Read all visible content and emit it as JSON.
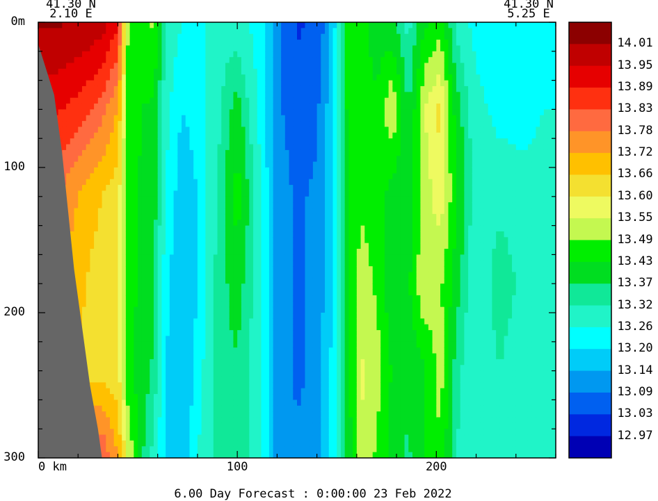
{
  "header": {
    "left_lat": "41.30 N",
    "left_lon": "2.10 E",
    "right_lat": "41.30 N",
    "right_lon": "5.25 E"
  },
  "footer": {
    "caption": "6.00 Day Forecast :  0:00:00  23 Feb 2022"
  },
  "chart_data": {
    "type": "heatmap",
    "title": "",
    "xlabel": "",
    "ylabel": "",
    "x_unit_label": "km",
    "y_unit_label": "m",
    "xlim": [
      0,
      260
    ],
    "ylim": [
      0,
      300
    ],
    "y_inverted": true,
    "x_ticks": [
      {
        "value": 0,
        "label": "0"
      },
      {
        "value": 100,
        "label": "100"
      },
      {
        "value": 200,
        "label": "200"
      }
    ],
    "y_ticks": [
      {
        "value": 0,
        "label": "0m"
      },
      {
        "value": 100,
        "label": "100"
      },
      {
        "value": 200,
        "label": "200"
      },
      {
        "value": 300,
        "label": "300"
      }
    ],
    "land_color": "#666666",
    "land_boundary": [
      [
        0,
        15
      ],
      [
        8,
        50
      ],
      [
        12,
        90
      ],
      [
        15,
        130
      ],
      [
        18,
        170
      ],
      [
        22,
        210
      ],
      [
        26,
        250
      ],
      [
        30,
        280
      ],
      [
        32,
        300
      ]
    ],
    "colorbar": {
      "labels": [
        "14.01",
        "13.95",
        "13.89",
        "13.83",
        "13.78",
        "13.72",
        "13.66",
        "13.60",
        "13.55",
        "13.49",
        "13.43",
        "13.37",
        "13.32",
        "13.26",
        "13.20",
        "13.14",
        "13.09",
        "13.03",
        "12.97"
      ],
      "colors": [
        "#8c0000",
        "#c00000",
        "#e60000",
        "#ff3010",
        "#ff6a40",
        "#ff9428",
        "#ffc000",
        "#f4e030",
        "#eefa60",
        "#c4f850",
        "#00ee00",
        "#00dd20",
        "#10e898",
        "#20f4c8",
        "#00ffff",
        "#00ccf8",
        "#0098f0",
        "#0060f0",
        "#0028e0",
        "#0000b4"
      ]
    },
    "profiles": [
      {
        "x": 0,
        "values": [
          14.02,
          13.9,
          13.8,
          13.74,
          13.7,
          13.68
        ]
      },
      {
        "x": 8,
        "values": [
          14.02,
          13.9,
          13.8,
          13.74,
          13.7,
          13.68
        ]
      },
      {
        "x": 16,
        "values": [
          14.01,
          13.88,
          13.74,
          13.7,
          13.68,
          13.66
        ]
      },
      {
        "x": 24,
        "values": [
          14.0,
          13.85,
          13.7,
          13.66,
          13.64,
          13.8
        ]
      },
      {
        "x": 32,
        "values": [
          13.98,
          13.8,
          13.66,
          13.62,
          13.64,
          13.84
        ]
      },
      {
        "x": 40,
        "values": [
          13.9,
          13.72,
          13.62,
          13.6,
          13.62,
          13.72
        ]
      },
      {
        "x": 45,
        "values": [
          13.5,
          13.46,
          13.46,
          13.45,
          13.45,
          13.55
        ]
      },
      {
        "x": 52,
        "values": [
          13.46,
          13.43,
          13.42,
          13.42,
          13.4,
          13.38
        ]
      },
      {
        "x": 58,
        "values": [
          13.5,
          13.42,
          13.4,
          13.38,
          13.36,
          13.3
        ]
      },
      {
        "x": 64,
        "values": [
          13.32,
          13.28,
          13.26,
          13.22,
          13.2,
          13.18
        ]
      },
      {
        "x": 72,
        "values": [
          13.26,
          13.2,
          13.16,
          13.14,
          13.14,
          13.14
        ]
      },
      {
        "x": 80,
        "values": [
          13.24,
          13.22,
          13.2,
          13.2,
          13.22,
          13.26
        ]
      },
      {
        "x": 90,
        "values": [
          13.3,
          13.3,
          13.32,
          13.34,
          13.36,
          13.34
        ]
      },
      {
        "x": 100,
        "values": [
          13.28,
          13.4,
          13.46,
          13.4,
          13.36,
          13.34
        ]
      },
      {
        "x": 110,
        "values": [
          13.24,
          13.26,
          13.3,
          13.3,
          13.28,
          13.3
        ]
      },
      {
        "x": 120,
        "values": [
          13.12,
          13.1,
          13.12,
          13.12,
          13.12,
          13.12
        ]
      },
      {
        "x": 130,
        "values": [
          13.02,
          13.06,
          13.08,
          13.08,
          13.08,
          13.1
        ]
      },
      {
        "x": 140,
        "values": [
          13.04,
          13.08,
          13.1,
          13.1,
          13.1,
          13.12
        ]
      },
      {
        "x": 148,
        "values": [
          13.16,
          13.18,
          13.2,
          13.2,
          13.22,
          13.24
        ]
      },
      {
        "x": 155,
        "values": [
          13.43,
          13.43,
          13.42,
          13.4,
          13.38,
          13.38
        ]
      },
      {
        "x": 162,
        "values": [
          13.45,
          13.46,
          13.48,
          13.52,
          13.56,
          13.55
        ]
      },
      {
        "x": 170,
        "values": [
          13.4,
          13.44,
          13.46,
          13.48,
          13.52,
          13.48
        ]
      },
      {
        "x": 178,
        "values": [
          13.38,
          13.55,
          13.4,
          13.38,
          13.42,
          13.4
        ]
      },
      {
        "x": 186,
        "values": [
          13.3,
          13.36,
          13.38,
          13.42,
          13.38,
          13.36
        ]
      },
      {
        "x": 194,
        "values": [
          13.42,
          13.55,
          13.52,
          13.55,
          13.42,
          13.43
        ]
      },
      {
        "x": 202,
        "values": [
          13.46,
          13.62,
          13.58,
          13.5,
          13.52,
          13.48
        ]
      },
      {
        "x": 210,
        "values": [
          13.3,
          13.4,
          13.44,
          13.4,
          13.34,
          13.32
        ]
      },
      {
        "x": 220,
        "values": [
          13.24,
          13.28,
          13.28,
          13.26,
          13.26,
          13.26
        ]
      },
      {
        "x": 232,
        "values": [
          13.2,
          13.24,
          13.3,
          13.36,
          13.32,
          13.28
        ]
      },
      {
        "x": 244,
        "values": [
          13.2,
          13.24,
          13.28,
          13.3,
          13.26,
          13.26
        ]
      },
      {
        "x": 254,
        "values": [
          13.22,
          13.26,
          13.28,
          13.3,
          13.28,
          13.26
        ]
      },
      {
        "x": 260,
        "values": [
          13.24,
          13.26,
          13.3,
          13.3,
          13.28,
          13.26
        ]
      }
    ],
    "profile_depths": [
      0,
      60,
      120,
      180,
      240,
      300
    ]
  }
}
